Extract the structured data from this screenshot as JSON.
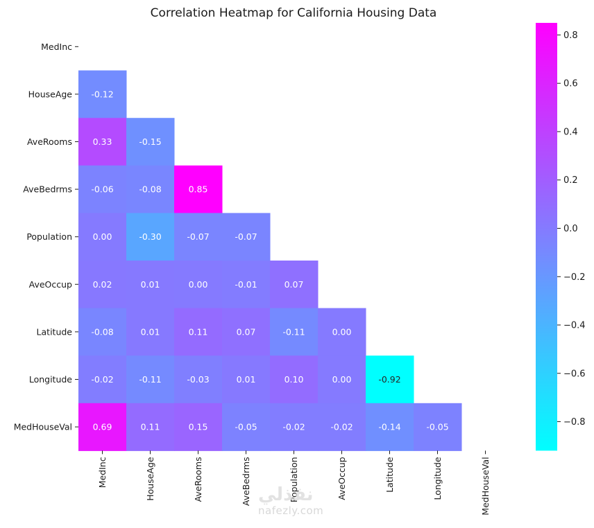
{
  "chart_data": {
    "type": "heatmap",
    "title": "Correlation Heatmap for California Housing Data",
    "xlabel": "",
    "ylabel": "",
    "mask": "upper-triangle-including-diagonal",
    "x_categories": [
      "MedInc",
      "HouseAge",
      "AveRooms",
      "AveBedrms",
      "Population",
      "AveOccup",
      "Latitude",
      "Longitude",
      "MedHouseVal"
    ],
    "y_categories": [
      "MedInc",
      "HouseAge",
      "AveRooms",
      "AveBedrms",
      "Population",
      "AveOccup",
      "Latitude",
      "Longitude",
      "MedHouseVal"
    ],
    "values": [
      [
        null,
        null,
        null,
        null,
        null,
        null,
        null,
        null,
        null
      ],
      [
        -0.12,
        null,
        null,
        null,
        null,
        null,
        null,
        null,
        null
      ],
      [
        0.33,
        -0.15,
        null,
        null,
        null,
        null,
        null,
        null,
        null
      ],
      [
        -0.06,
        -0.08,
        0.85,
        null,
        null,
        null,
        null,
        null,
        null
      ],
      [
        0.0,
        -0.3,
        -0.07,
        -0.07,
        null,
        null,
        null,
        null,
        null
      ],
      [
        0.02,
        0.01,
        -0.0,
        -0.01,
        0.07,
        null,
        null,
        null,
        null
      ],
      [
        -0.08,
        0.01,
        0.11,
        0.07,
        -0.11,
        0.0,
        null,
        null,
        null
      ],
      [
        -0.02,
        -0.11,
        -0.03,
        0.01,
        0.1,
        0.0,
        -0.92,
        null,
        null
      ],
      [
        0.69,
        0.11,
        0.15,
        -0.05,
        -0.02,
        -0.02,
        -0.14,
        -0.05,
        null
      ]
    ],
    "annotation_format": "0.00",
    "colormap": "cool",
    "colormap_colors": {
      "low": "#00ffff",
      "high": "#ff00ff"
    },
    "vmin": -0.92,
    "vmax": 0.85,
    "colorbar": {
      "position": "right",
      "ticks": [
        0.8,
        0.6,
        0.4,
        0.2,
        0.0,
        -0.2,
        -0.4,
        -0.6,
        -0.8
      ],
      "tick_labels": [
        "0.8",
        "0.6",
        "0.4",
        "0.2",
        "0.0",
        "−0.2",
        "−0.4",
        "−0.6",
        "−0.8"
      ]
    }
  },
  "watermark": {
    "arabic": "نفذلي",
    "latin": "nafezly.com"
  }
}
